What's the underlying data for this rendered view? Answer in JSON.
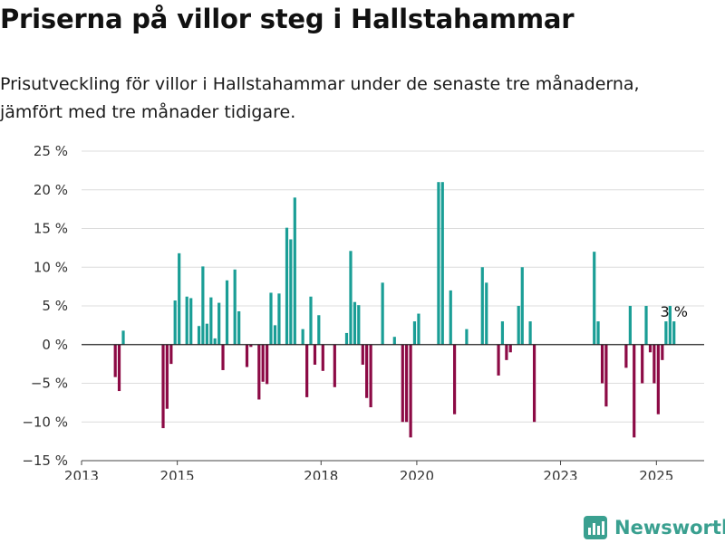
{
  "title": "Priserna på villor steg i Hallstahammar",
  "subtitle_line1": "Prisutveckling för villor i Hallstahammar under de senaste tre månaderna,",
  "subtitle_line2": "jämfört med tre månader tidigare.",
  "brand": {
    "name": "Newsworthy",
    "icon": "newsworthy-logo-icon",
    "color": "#3aa090"
  },
  "colors": {
    "positive": "#1a9e96",
    "negative": "#8c0a45",
    "grid": "#dcdcdc",
    "zero": "#222222"
  },
  "chart_data": {
    "type": "bar",
    "xlim": [
      "2013-01-01",
      "2025-12-31"
    ],
    "ylim": [
      -15,
      25
    ],
    "yticks": [
      25,
      20,
      15,
      10,
      5,
      0,
      -5,
      -10,
      -15
    ],
    "ytick_labels": [
      "25 %",
      "20 %",
      "15 %",
      "10 %",
      "5 %",
      "0 %",
      "−5 %",
      "−10 %",
      "−15 %"
    ],
    "xticks": [
      {
        "date": "2013-01-01",
        "label": "2013"
      },
      {
        "date": "2015-01-01",
        "label": "2015"
      },
      {
        "date": "2018-01-01",
        "label": "2018"
      },
      {
        "date": "2020-01-01",
        "label": "2020"
      },
      {
        "date": "2023-01-01",
        "label": "2023"
      },
      {
        "date": "2025-01-01",
        "label": "2025"
      }
    ],
    "grid": true,
    "last_label": "3 %",
    "points": [
      {
        "date": "2013-09-15",
        "value": -4.2
      },
      {
        "date": "2013-10-15",
        "value": -6.0
      },
      {
        "date": "2013-11-15",
        "value": 1.8
      },
      {
        "date": "2014-09-15",
        "value": -10.8
      },
      {
        "date": "2014-10-15",
        "value": -8.3
      },
      {
        "date": "2014-11-15",
        "value": -2.5
      },
      {
        "date": "2014-12-15",
        "value": 5.7
      },
      {
        "date": "2015-01-15",
        "value": 11.8
      },
      {
        "date": "2015-03-15",
        "value": 6.2
      },
      {
        "date": "2015-04-15",
        "value": 6.0
      },
      {
        "date": "2015-06-15",
        "value": 2.4
      },
      {
        "date": "2015-07-15",
        "value": 10.1
      },
      {
        "date": "2015-08-15",
        "value": 2.7
      },
      {
        "date": "2015-09-15",
        "value": 6.1
      },
      {
        "date": "2015-10-15",
        "value": 0.8
      },
      {
        "date": "2015-11-15",
        "value": 5.4
      },
      {
        "date": "2015-12-15",
        "value": -3.3
      },
      {
        "date": "2016-01-15",
        "value": 8.3
      },
      {
        "date": "2016-03-15",
        "value": 9.7
      },
      {
        "date": "2016-04-15",
        "value": 4.3
      },
      {
        "date": "2016-06-15",
        "value": -2.9
      },
      {
        "date": "2016-07-15",
        "value": -0.3
      },
      {
        "date": "2016-09-15",
        "value": -7.1
      },
      {
        "date": "2016-10-15",
        "value": -4.8
      },
      {
        "date": "2016-11-15",
        "value": -5.1
      },
      {
        "date": "2016-12-15",
        "value": 6.7
      },
      {
        "date": "2017-01-15",
        "value": 2.5
      },
      {
        "date": "2017-02-15",
        "value": 6.6
      },
      {
        "date": "2017-04-15",
        "value": 15.1
      },
      {
        "date": "2017-05-15",
        "value": 13.6
      },
      {
        "date": "2017-06-15",
        "value": 19.0
      },
      {
        "date": "2017-08-15",
        "value": 2.0
      },
      {
        "date": "2017-09-15",
        "value": -6.8
      },
      {
        "date": "2017-10-15",
        "value": 6.2
      },
      {
        "date": "2017-11-15",
        "value": -2.6
      },
      {
        "date": "2017-12-15",
        "value": 3.8
      },
      {
        "date": "2018-01-15",
        "value": -3.4
      },
      {
        "date": "2018-04-15",
        "value": -5.5
      },
      {
        "date": "2018-07-15",
        "value": 1.5
      },
      {
        "date": "2018-08-15",
        "value": 12.1
      },
      {
        "date": "2018-09-15",
        "value": 5.5
      },
      {
        "date": "2018-10-15",
        "value": 5.1
      },
      {
        "date": "2018-11-15",
        "value": -2.6
      },
      {
        "date": "2018-12-15",
        "value": -6.9
      },
      {
        "date": "2019-01-15",
        "value": -8.1
      },
      {
        "date": "2019-04-15",
        "value": 8.0
      },
      {
        "date": "2019-07-15",
        "value": 1.0
      },
      {
        "date": "2019-09-15",
        "value": -10.0
      },
      {
        "date": "2019-10-15",
        "value": -10.0
      },
      {
        "date": "2019-11-15",
        "value": -12.0
      },
      {
        "date": "2019-12-15",
        "value": 3.0
      },
      {
        "date": "2020-01-15",
        "value": 4.0
      },
      {
        "date": "2020-06-15",
        "value": 21.0
      },
      {
        "date": "2020-07-15",
        "value": 21.0
      },
      {
        "date": "2020-09-15",
        "value": 7.0
      },
      {
        "date": "2020-10-15",
        "value": -9.0
      },
      {
        "date": "2021-01-15",
        "value": 2.0
      },
      {
        "date": "2021-05-15",
        "value": 10.0
      },
      {
        "date": "2021-06-15",
        "value": 8.0
      },
      {
        "date": "2021-09-15",
        "value": -4.0
      },
      {
        "date": "2021-10-15",
        "value": 3.0
      },
      {
        "date": "2021-11-15",
        "value": -2.0
      },
      {
        "date": "2021-12-15",
        "value": -1.0
      },
      {
        "date": "2022-02-15",
        "value": 5.0
      },
      {
        "date": "2022-03-15",
        "value": 10.0
      },
      {
        "date": "2022-05-15",
        "value": 3.0
      },
      {
        "date": "2022-06-15",
        "value": -10.0
      },
      {
        "date": "2023-09-15",
        "value": 12.0
      },
      {
        "date": "2023-10-15",
        "value": 3.0
      },
      {
        "date": "2023-11-15",
        "value": -5.0
      },
      {
        "date": "2023-12-15",
        "value": -8.0
      },
      {
        "date": "2024-05-15",
        "value": -3.0
      },
      {
        "date": "2024-06-15",
        "value": 5.0
      },
      {
        "date": "2024-07-15",
        "value": -12.0
      },
      {
        "date": "2024-09-15",
        "value": -5.0
      },
      {
        "date": "2024-10-15",
        "value": 5.0
      },
      {
        "date": "2024-11-15",
        "value": -1.0
      },
      {
        "date": "2024-12-15",
        "value": -5.0
      },
      {
        "date": "2025-01-15",
        "value": -9.0
      },
      {
        "date": "2025-02-15",
        "value": -2.0
      },
      {
        "date": "2025-03-15",
        "value": 3.0
      },
      {
        "date": "2025-04-15",
        "value": 5.0
      },
      {
        "date": "2025-05-15",
        "value": 3.0
      }
    ]
  }
}
